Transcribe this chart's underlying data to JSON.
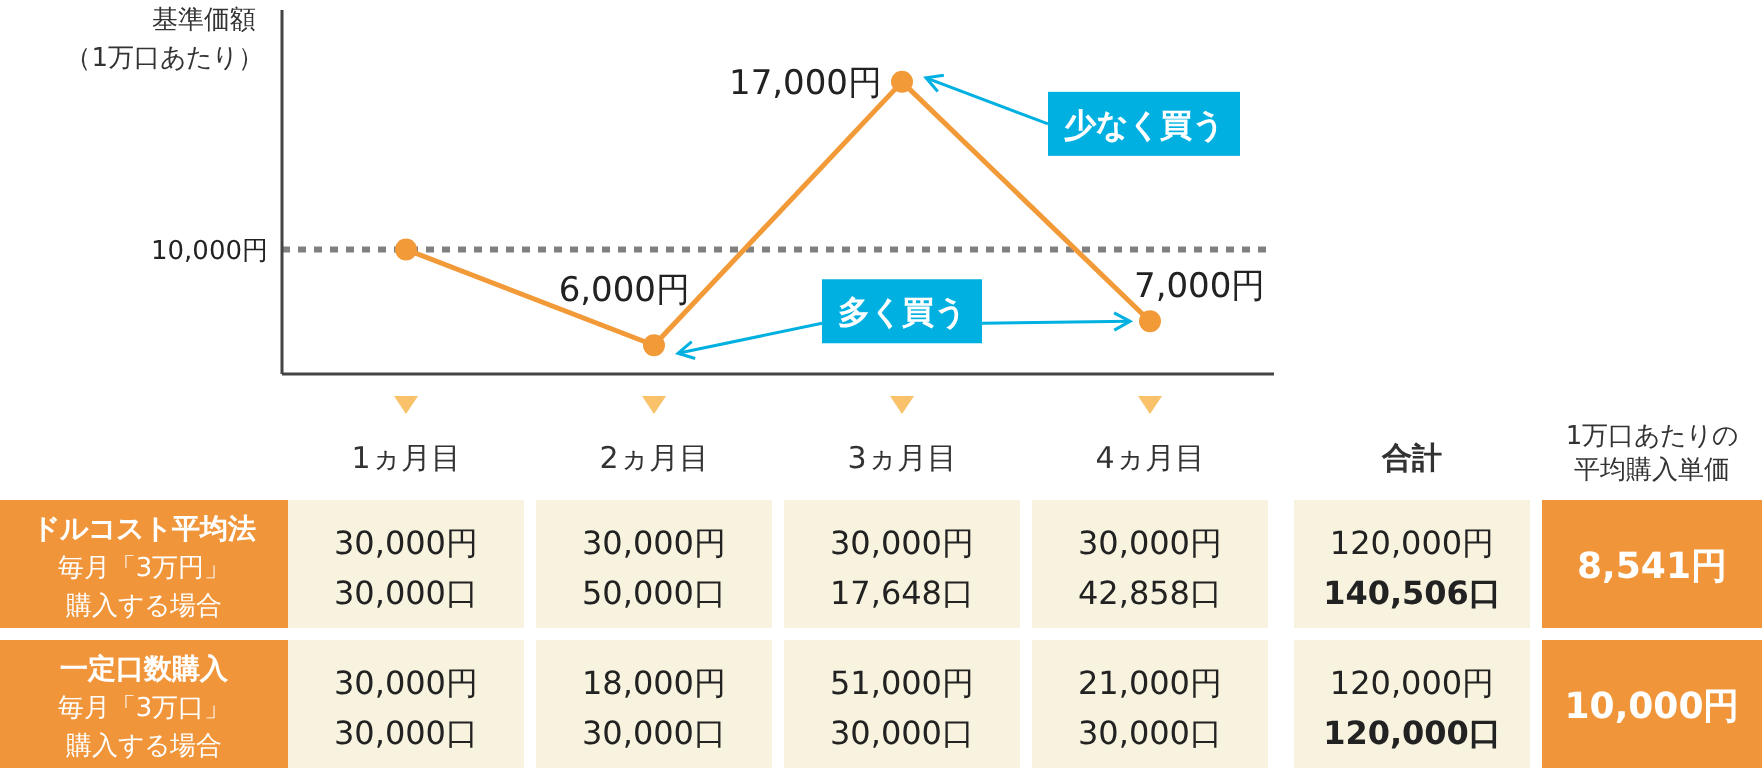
{
  "chart_data": [
    {
      "type": "line",
      "ylabel": "基準価額（1万口あたり）",
      "categories": [
        "1ヵ月目",
        "2ヵ月目",
        "3ヵ月目",
        "4ヵ月目"
      ],
      "series": [
        {
          "color": "#f29a38",
          "values": [
            10000,
            6000,
            17000,
            7000
          ],
          "value_labels": [
            null,
            "6,000円",
            "17,000円",
            "7,000円"
          ]
        }
      ],
      "ylim": [
        4800,
        20000
      ],
      "marker": "circle",
      "ref_lines": [
        {
          "axis": "y",
          "value": 10000,
          "label": "10,000円",
          "color": "#808080",
          "line_style": "dotted"
        }
      ],
      "annotations": [
        "少なく買う",
        "多く買う"
      ]
    },
    {
      "type": "other",
      "categories": [
        "合計",
        "1万口あたりの平均購入単価"
      ],
      "y_categories": [
        "ドルコスト平均法毎月「3万円」購入する場合",
        "一定口数購入毎月「3万口」購入する場合"
      ],
      "cell_labels": [
        [
          "30,000円\n30,000口",
          "30,000円\n50,000口",
          "30,000円\n17,648口",
          "30,000円\n42,858口",
          "120,000円\n140,506口",
          "8,541円"
        ],
        [
          "30,000円\n30,000口",
          "18,000円\n30,000口",
          "51,000円\n30,000口",
          "21,000円\n30,000口",
          "120,000円\n120,000口",
          "10,000円"
        ]
      ]
    }
  ]
}
